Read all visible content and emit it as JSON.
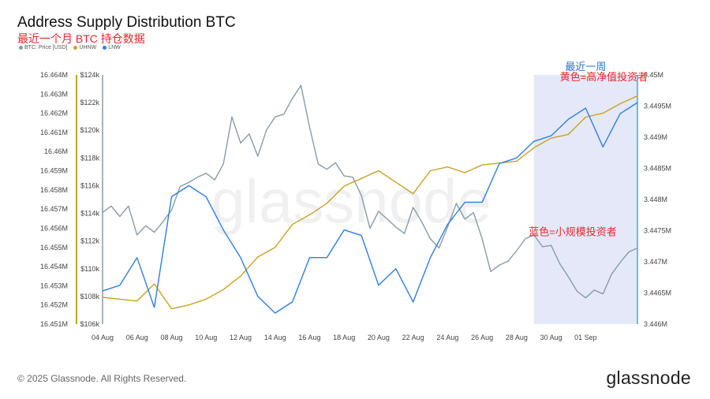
{
  "header": {
    "title": "Address Supply Distribution BTC",
    "subtitle": "最近一个月 BTC 持仓数据"
  },
  "footer": {
    "copyright": "© 2025 Glassnode. All Rights Reserved.",
    "logo": "glassnode"
  },
  "watermark": "glassnode",
  "colors": {
    "price": "#8a9ba6",
    "uhnw": "#c9a227",
    "lnw": "#2e7fe0",
    "highlight": "#e4e8f9",
    "annotation_red": "#e8262b",
    "annotation_blue": "#2e6fd6"
  },
  "chart_data": {
    "type": "line",
    "legend_position": "top-left",
    "x_ticks": [
      "04 Aug",
      "06 Aug",
      "08 Aug",
      "10 Aug",
      "12 Aug",
      "14 Aug",
      "16 Aug",
      "18 Aug",
      "20 Aug",
      "22 Aug",
      "24 Aug",
      "26 Aug",
      "28 Aug",
      "30 Aug",
      "01 Sep"
    ],
    "x_range_days": [
      0,
      31
    ],
    "y_left_price": {
      "ticks": [
        "$124k",
        "$122k",
        "$120k",
        "$118k",
        "$116k",
        "$114k",
        "$112k",
        "$110k",
        "$108k",
        "$106k"
      ],
      "range": [
        106000,
        125000
      ]
    },
    "y_left_uhnw": {
      "ticks": [
        "16.464M",
        "16.463M",
        "16.462M",
        "16.461M",
        "16.46M",
        "16.459M",
        "16.458M",
        "16.457M",
        "16.456M",
        "16.455M",
        "16.454M",
        "16.453M",
        "16.452M",
        "16.451M"
      ],
      "range": [
        16.451,
        16.464
      ]
    },
    "y_right_lnw": {
      "ticks": [
        "3.45M",
        "3.4495M",
        "3.449M",
        "3.4485M",
        "3.448M",
        "3.4475M",
        "3.447M",
        "3.4465M",
        "3.446M"
      ],
      "range": [
        3.4458,
        3.4503
      ]
    },
    "series": [
      {
        "name": "BTC: Price [USD]",
        "axis": "price",
        "points": [
          [
            0,
            114500
          ],
          [
            0.5,
            115000
          ],
          [
            1,
            114200
          ],
          [
            1.5,
            115000
          ],
          [
            2,
            112800
          ],
          [
            2.5,
            113500
          ],
          [
            3,
            113000
          ],
          [
            3.5,
            113800
          ],
          [
            4,
            114700
          ],
          [
            4.5,
            116500
          ],
          [
            5,
            116800
          ],
          [
            5.5,
            117200
          ],
          [
            6,
            117500
          ],
          [
            6.5,
            117000
          ],
          [
            7,
            118200
          ],
          [
            7.5,
            121800
          ],
          [
            8,
            119800
          ],
          [
            8.5,
            120500
          ],
          [
            9,
            118800
          ],
          [
            9.5,
            120800
          ],
          [
            10,
            121800
          ],
          [
            10.5,
            122000
          ],
          [
            11,
            123200
          ],
          [
            11.5,
            124200
          ],
          [
            12,
            121000
          ],
          [
            12.5,
            118200
          ],
          [
            13,
            117800
          ],
          [
            13.5,
            118300
          ],
          [
            14,
            117300
          ],
          [
            14.5,
            117200
          ],
          [
            15,
            115800
          ],
          [
            15.5,
            113300
          ],
          [
            16,
            114600
          ],
          [
            16.5,
            114000
          ],
          [
            17,
            113400
          ],
          [
            17.5,
            112900
          ],
          [
            18,
            114900
          ],
          [
            18.5,
            113800
          ],
          [
            19,
            112500
          ],
          [
            19.5,
            111800
          ],
          [
            20,
            113400
          ],
          [
            20.5,
            115200
          ],
          [
            21,
            114000
          ],
          [
            21.5,
            114500
          ],
          [
            22,
            112500
          ],
          [
            22.5,
            110000
          ],
          [
            23,
            110500
          ],
          [
            23.5,
            110800
          ],
          [
            24,
            111600
          ],
          [
            24.5,
            112500
          ],
          [
            25,
            112800
          ],
          [
            25.5,
            111900
          ],
          [
            26,
            112000
          ],
          [
            26.5,
            110600
          ],
          [
            27,
            109600
          ],
          [
            27.5,
            108500
          ],
          [
            28,
            108000
          ],
          [
            28.5,
            108600
          ],
          [
            29,
            108300
          ],
          [
            29.5,
            109800
          ],
          [
            30,
            110700
          ],
          [
            30.5,
            111500
          ],
          [
            31,
            111800
          ]
        ]
      },
      {
        "name": "UHNW",
        "axis": "uhnw",
        "points": [
          [
            0,
            16.4524
          ],
          [
            1,
            16.4523
          ],
          [
            2,
            16.4522
          ],
          [
            3,
            16.4531
          ],
          [
            4,
            16.4518
          ],
          [
            5,
            16.452
          ],
          [
            6,
            16.4523
          ],
          [
            7,
            16.4528
          ],
          [
            8,
            16.4535
          ],
          [
            9,
            16.4545
          ],
          [
            10,
            16.455
          ],
          [
            11,
            16.4562
          ],
          [
            12,
            16.4567
          ],
          [
            13,
            16.4573
          ],
          [
            14,
            16.4582
          ],
          [
            15,
            16.4586
          ],
          [
            16,
            16.459
          ],
          [
            17,
            16.4584
          ],
          [
            18,
            16.4578
          ],
          [
            19,
            16.459
          ],
          [
            20,
            16.4592
          ],
          [
            21,
            16.4589
          ],
          [
            22,
            16.4593
          ],
          [
            23,
            16.4594
          ],
          [
            24,
            16.4595
          ],
          [
            25,
            16.4602
          ],
          [
            26,
            16.4607
          ],
          [
            27,
            16.4609
          ],
          [
            28,
            16.4618
          ],
          [
            29,
            16.462
          ],
          [
            30,
            16.4625
          ],
          [
            31,
            16.4629
          ]
        ]
      },
      {
        "name": "LNW",
        "axis": "lnw",
        "points": [
          [
            0,
            3.4464
          ],
          [
            1,
            3.4465
          ],
          [
            2,
            3.447
          ],
          [
            3,
            3.4461
          ],
          [
            4,
            3.4481
          ],
          [
            5,
            3.4483
          ],
          [
            6,
            3.4481
          ],
          [
            7,
            3.4475
          ],
          [
            8,
            3.447
          ],
          [
            9,
            3.4463
          ],
          [
            10,
            3.446
          ],
          [
            11,
            3.4462
          ],
          [
            12,
            3.447
          ],
          [
            13,
            3.447
          ],
          [
            14,
            3.4475
          ],
          [
            15,
            3.4474
          ],
          [
            16,
            3.4465
          ],
          [
            17,
            3.4468
          ],
          [
            18,
            3.4462
          ],
          [
            19,
            3.447
          ],
          [
            20,
            3.4476
          ],
          [
            21,
            3.448
          ],
          [
            22,
            3.448
          ],
          [
            23,
            3.4487
          ],
          [
            24,
            3.4488
          ],
          [
            25,
            3.4491
          ],
          [
            26,
            3.4492
          ],
          [
            27,
            3.4495
          ],
          [
            28,
            3.4497
          ],
          [
            29,
            3.449
          ],
          [
            30,
            3.4496
          ],
          [
            31,
            3.4498
          ]
        ]
      }
    ],
    "highlight": {
      "x_start": 25,
      "x_end": 31,
      "label": "最近一周"
    },
    "annotations": [
      {
        "text": "黄色=高净值投资者",
        "color_key": "annotation_red",
        "x": 26.5,
        "y_lnw": 3.4502
      },
      {
        "text": "蓝色=小规模投资者",
        "color_key": "annotation_red",
        "x": 24.7,
        "y_lnw": 3.4474
      }
    ]
  }
}
